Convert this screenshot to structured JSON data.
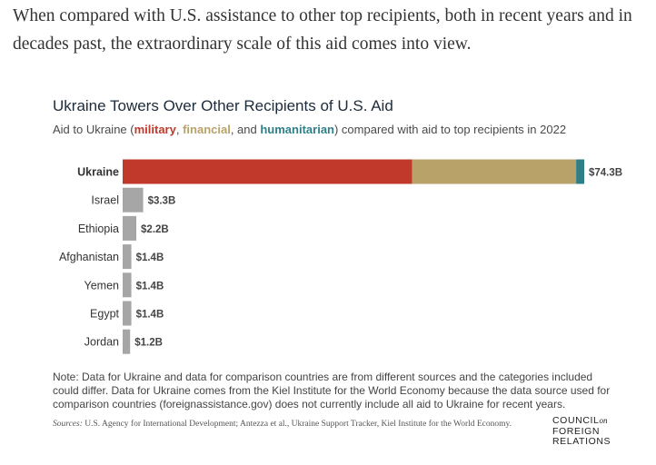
{
  "intro": "When compared with U.S. assistance to other top recipients, both in recent years and in decades past, the extraordinary scale of this aid comes into view.",
  "chart_data": {
    "type": "bar",
    "orientation": "horizontal",
    "stacked": true,
    "title": "Ukraine Towers Over Other Recipients of U.S. Aid",
    "subtitle": {
      "prefix": "Aid to Ukraine (",
      "military": "military",
      "sep1": ", ",
      "financial": "financial",
      "sep2": ", and ",
      "humanitarian": "humanitarian",
      "suffix": ") compared with aid to top recipients in 2022"
    },
    "categories": [
      "Ukraine",
      "Israel",
      "Ethiopia",
      "Afghanistan",
      "Yemen",
      "Egypt",
      "Jordan"
    ],
    "ukraine_breakdown": [
      {
        "component": "military",
        "value": 46.6
      },
      {
        "component": "financial",
        "value": 26.4
      },
      {
        "component": "humanitarian",
        "value": 1.3
      }
    ],
    "values": [
      74.3,
      3.3,
      2.2,
      1.4,
      1.4,
      1.4,
      1.2
    ],
    "value_labels": [
      "$74.3B",
      "$3.3B",
      "$2.2B",
      "$1.4B",
      "$1.4B",
      "$1.4B",
      "$1.2B"
    ],
    "xlim": [
      0,
      74.3
    ],
    "grid": false,
    "colors": {
      "military": "#c0392b",
      "financial": "#b8a269",
      "humanitarian": "#2f7f86",
      "other": "#a6a6a6"
    }
  },
  "note": "Note: Data for Ukraine and data for comparison countries are from different sources and the categories included could differ. Data for Ukraine comes from the Kiel Institute for the World Economy because the data source used for comparison countries (foreignassistance.gov) does not currently include all aid to Ukraine for recent years.",
  "sources": {
    "label": "Sources:",
    "text": " U.S. Agency for International Development; Antezza et al., Ukraine Support Tracker, Kiel Institute for the World Economy."
  },
  "logo": {
    "line1": "COUNCIL",
    "on": "on",
    "line2": "FOREIGN",
    "line3": "RELATIONS"
  }
}
